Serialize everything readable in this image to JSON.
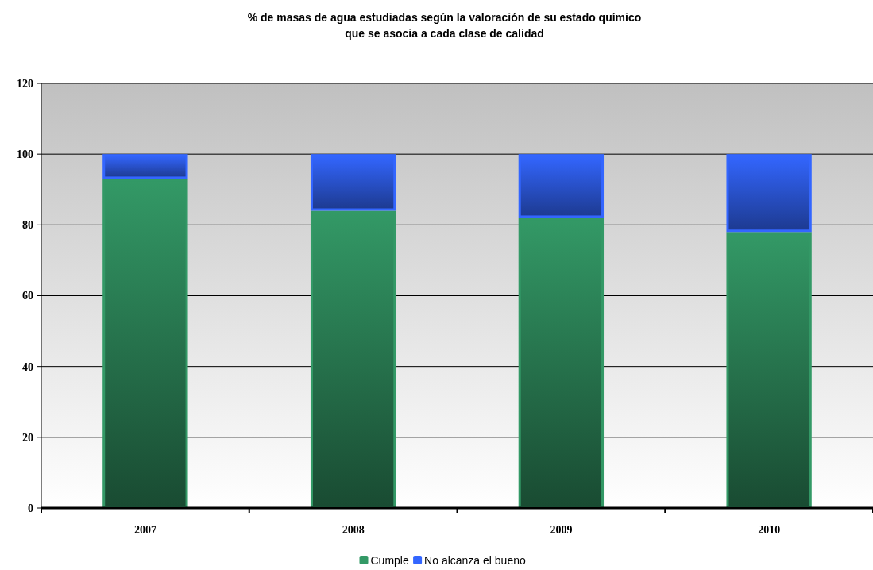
{
  "chart_data": {
    "type": "bar",
    "title": "% de masas de agua estudiadas según la valoración de su estado químico\nque se asocia a cada clase de calidad",
    "categories": [
      "2007",
      "2008",
      "2009",
      "2010"
    ],
    "stacked": true,
    "series": [
      {
        "name": "Cumple",
        "color": "#339966",
        "values": [
          93,
          84,
          82,
          78
        ]
      },
      {
        "name": "No alcanza el bueno",
        "color": "#3366ff",
        "values": [
          7,
          16,
          18,
          22
        ]
      }
    ],
    "ylim": [
      0,
      120
    ],
    "yticks": [
      0,
      20,
      40,
      60,
      80,
      100,
      120
    ],
    "grid": "y",
    "legend": "bottom"
  }
}
